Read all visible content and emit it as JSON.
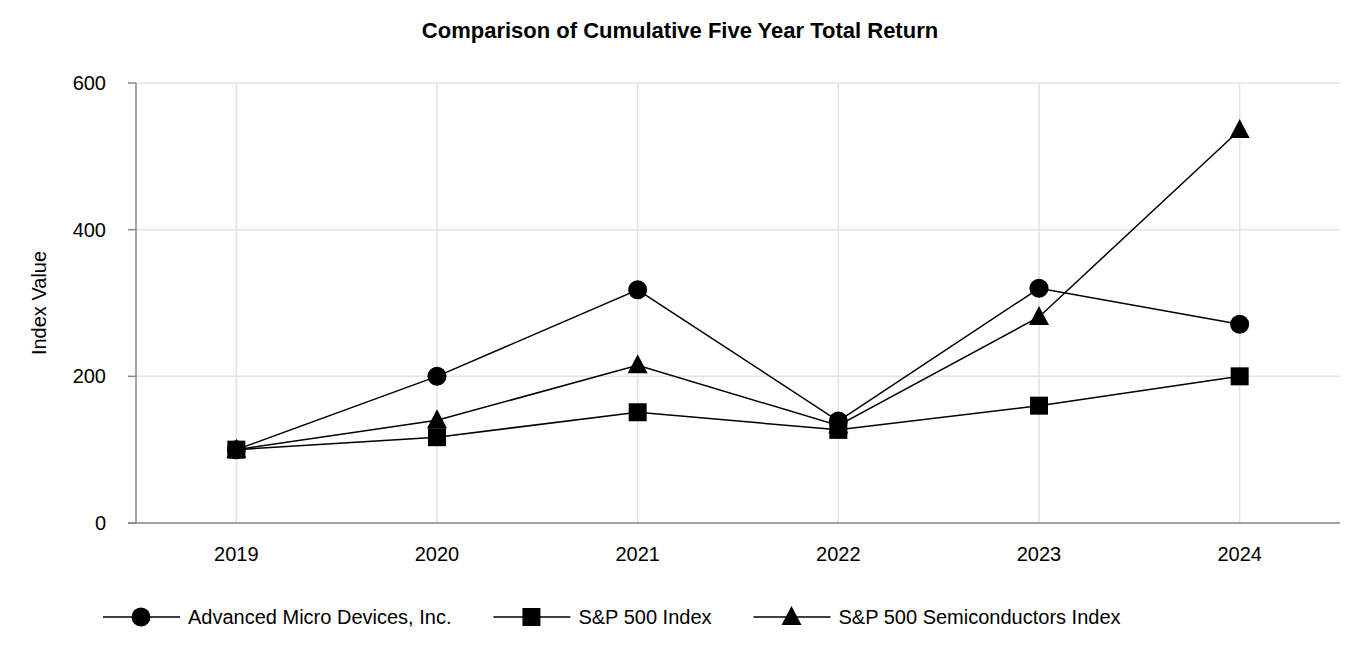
{
  "chart_data": {
    "type": "line",
    "title": "Comparison of Cumulative Five Year Total Return",
    "y_label": "Index Value",
    "categories": [
      "2019",
      "2020",
      "2021",
      "2022",
      "2023",
      "2024"
    ],
    "series": [
      {
        "name": "Advanced Micro Devices, Inc.",
        "color": "#000000",
        "marker": "circle",
        "values": [
          100,
          200,
          318,
          139,
          320,
          271
        ]
      },
      {
        "name": "S&P 500 Index",
        "color": "#000000",
        "marker": "square",
        "values": [
          100,
          117,
          151,
          127,
          160,
          200
        ]
      },
      {
        "name": "S&P 500 Semiconductors Index",
        "color": "#000000",
        "marker": "triangle",
        "values": [
          100,
          140,
          215,
          133,
          281,
          536
        ]
      }
    ],
    "ylim": [
      0,
      600
    ],
    "yticks": [
      0,
      200,
      400,
      600
    ],
    "grid": true,
    "legend": "bottom"
  }
}
